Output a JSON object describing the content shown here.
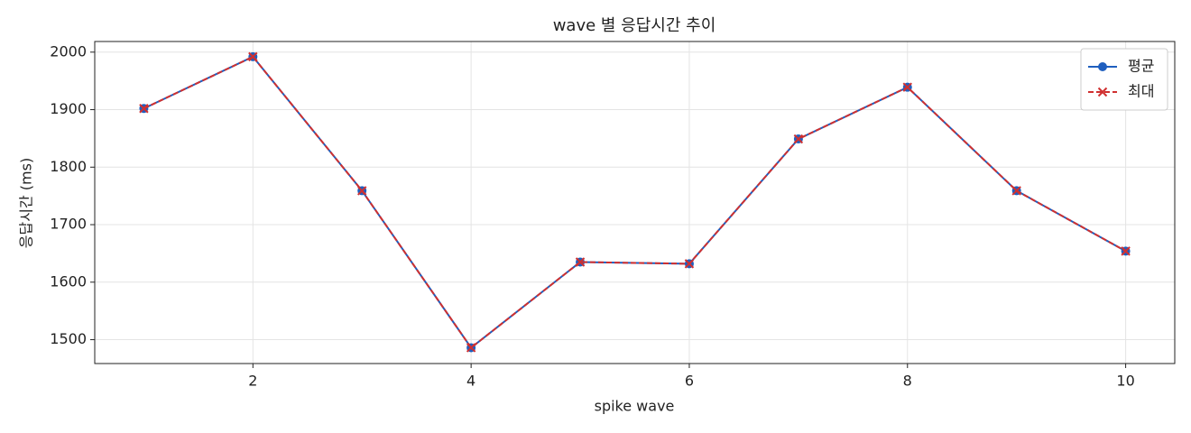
{
  "chart_data": {
    "type": "line",
    "title": "wave 별 응답시간 추이",
    "x_label": "spike wave",
    "y_label": "응답시간 (ms)",
    "x": [
      1,
      2,
      3,
      4,
      5,
      6,
      7,
      8,
      9,
      10
    ],
    "series": [
      {
        "name": "평균",
        "color": "#1f5fbf",
        "marker": "circle",
        "dash": false,
        "values": [
          1902,
          1992,
          1759,
          1486,
          1635,
          1632,
          1849,
          1939,
          1759,
          1654
        ]
      },
      {
        "name": "최대",
        "color": "#d03030",
        "marker": "x",
        "dash": true,
        "values": [
          1902,
          1992,
          1759,
          1486,
          1635,
          1632,
          1849,
          1939,
          1759,
          1654
        ]
      }
    ],
    "xlim": [
      0.55,
      10.45
    ],
    "xticks": [
      2,
      4,
      6,
      8,
      10
    ],
    "ylim": [
      1458.5,
      2018.5
    ],
    "yticks": [
      1500,
      1600,
      1700,
      1800,
      1900,
      2000
    ],
    "grid": true,
    "legend": "upper right"
  }
}
